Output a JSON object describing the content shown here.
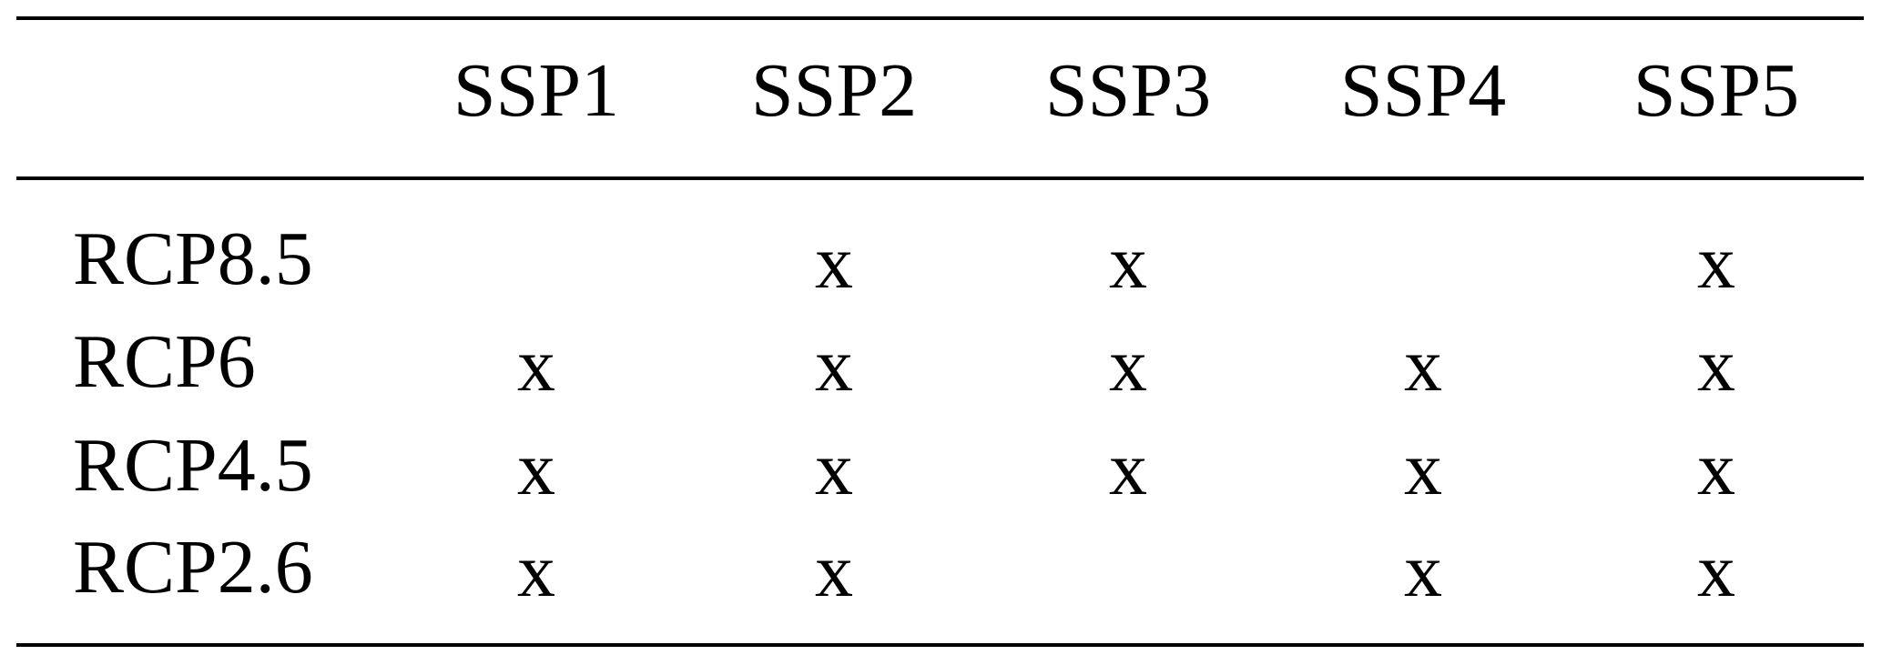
{
  "table": {
    "columns": [
      "SSP1",
      "SSP2",
      "SSP3",
      "SSP4",
      "SSP5"
    ],
    "rows": [
      {
        "label": "RCP8.5",
        "cells": [
          "",
          "x",
          "x",
          "",
          "x"
        ]
      },
      {
        "label": "RCP6",
        "cells": [
          "x",
          "x",
          "x",
          "x",
          "x"
        ]
      },
      {
        "label": "RCP4.5",
        "cells": [
          "x",
          "x",
          "x",
          "x",
          "x"
        ]
      },
      {
        "label": "RCP2.6",
        "cells": [
          "x",
          "x",
          "",
          "x",
          "x"
        ]
      }
    ]
  }
}
